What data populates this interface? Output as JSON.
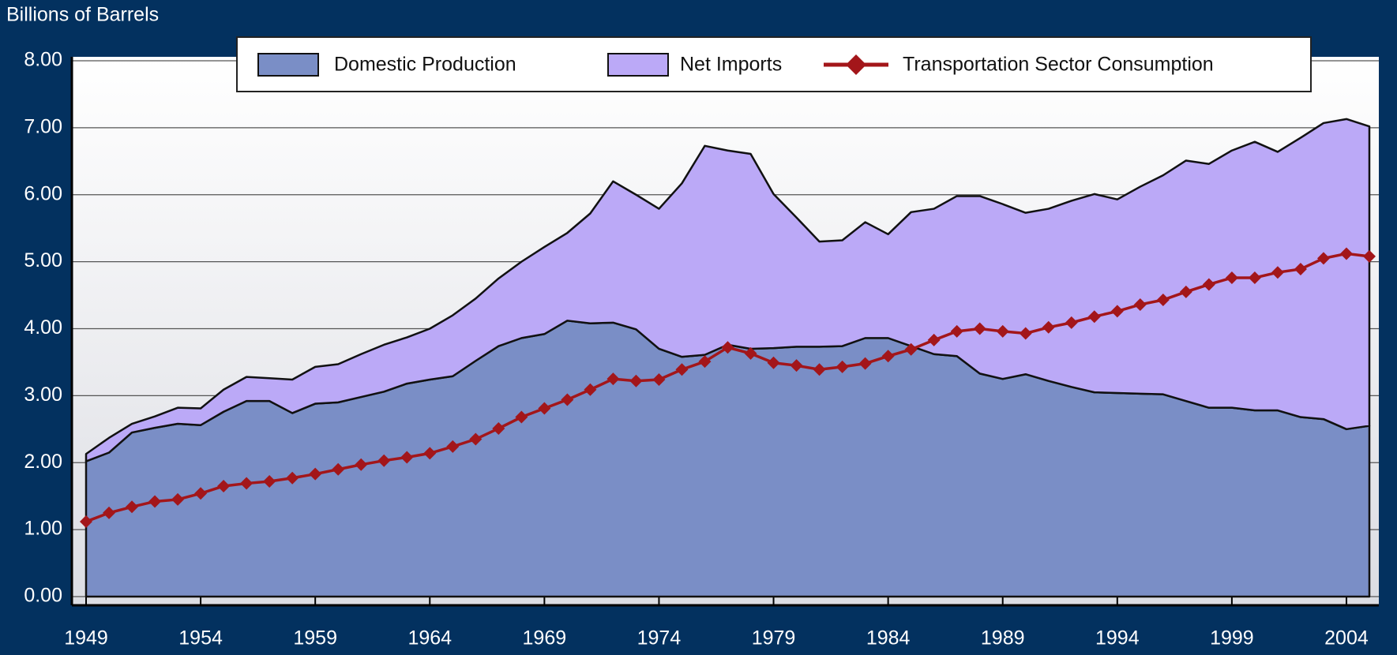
{
  "chart_data": {
    "type": "area",
    "y_label": "Billions of Barrels",
    "x": [
      1949,
      1950,
      1951,
      1952,
      1953,
      1954,
      1955,
      1956,
      1957,
      1958,
      1959,
      1960,
      1961,
      1962,
      1963,
      1964,
      1965,
      1966,
      1967,
      1968,
      1969,
      1970,
      1971,
      1972,
      1973,
      1974,
      1975,
      1976,
      1977,
      1978,
      1979,
      1980,
      1981,
      1982,
      1983,
      1984,
      1985,
      1986,
      1987,
      1988,
      1989,
      1990,
      1991,
      1992,
      1993,
      1994,
      1995,
      1996,
      1997,
      1998,
      1999,
      2000,
      2001,
      2002,
      2003,
      2004,
      2005
    ],
    "series": [
      {
        "name": "Domestic Production",
        "type": "area",
        "stacked": true,
        "color": "#7a8ec6",
        "values": [
          2.02,
          2.15,
          2.45,
          2.52,
          2.58,
          2.56,
          2.76,
          2.92,
          2.92,
          2.74,
          2.88,
          2.9,
          2.98,
          3.06,
          3.18,
          3.24,
          3.29,
          3.52,
          3.74,
          3.86,
          3.92,
          4.12,
          4.08,
          4.09,
          3.99,
          3.7,
          3.58,
          3.61,
          3.76,
          3.7,
          3.71,
          3.73,
          3.73,
          3.74,
          3.86,
          3.86,
          3.74,
          3.62,
          3.59,
          3.33,
          3.25,
          3.32,
          3.22,
          3.13,
          3.05,
          3.04,
          3.03,
          3.02,
          2.92,
          2.82,
          2.82,
          2.78,
          2.78,
          2.68,
          2.65,
          2.5,
          2.55
        ]
      },
      {
        "name": "Net Imports",
        "type": "area",
        "stacked": true,
        "color": "#bba9f7",
        "values": [
          0.11,
          0.22,
          0.13,
          0.17,
          0.24,
          0.25,
          0.33,
          0.36,
          0.34,
          0.5,
          0.55,
          0.57,
          0.64,
          0.7,
          0.69,
          0.76,
          0.91,
          0.93,
          1.01,
          1.14,
          1.3,
          1.31,
          1.64,
          2.11,
          2.01,
          2.09,
          2.59,
          3.12,
          2.9,
          2.91,
          2.3,
          1.93,
          1.57,
          1.58,
          1.73,
          1.55,
          2.0,
          2.17,
          2.39,
          2.65,
          2.61,
          2.41,
          2.57,
          2.78,
          2.96,
          2.89,
          3.09,
          3.27,
          3.59,
          3.64,
          3.84,
          4.01,
          3.86,
          4.17,
          4.42,
          4.63,
          4.47
        ]
      },
      {
        "name": "Transportation Sector Consumption",
        "type": "line",
        "color": "#a3161a",
        "values": [
          1.12,
          1.25,
          1.34,
          1.42,
          1.45,
          1.54,
          1.65,
          1.69,
          1.72,
          1.77,
          1.83,
          1.9,
          1.97,
          2.03,
          2.08,
          2.14,
          2.24,
          2.35,
          2.51,
          2.68,
          2.81,
          2.94,
          3.09,
          3.25,
          3.22,
          3.24,
          3.39,
          3.51,
          3.72,
          3.63,
          3.49,
          3.45,
          3.39,
          3.43,
          3.48,
          3.59,
          3.69,
          3.83,
          3.96,
          4.0,
          3.96,
          3.93,
          4.02,
          4.09,
          4.18,
          4.26,
          4.36,
          4.43,
          4.55,
          4.66,
          4.76,
          4.76,
          4.84,
          4.89,
          5.05,
          5.12,
          5.08
        ]
      }
    ],
    "xlim": [
      1949,
      2005
    ],
    "xticks": [
      1949,
      1954,
      1959,
      1964,
      1969,
      1974,
      1979,
      1984,
      1989,
      1994,
      1999,
      2004
    ],
    "ylim": [
      0,
      8
    ],
    "yticks": [
      {
        "value": 0,
        "label": "0.00"
      },
      {
        "value": 1,
        "label": "1.00"
      },
      {
        "value": 2,
        "label": "2.00"
      },
      {
        "value": 3,
        "label": "3.00"
      },
      {
        "value": 4,
        "label": "4.00"
      },
      {
        "value": 5,
        "label": "5.00"
      },
      {
        "value": 6,
        "label": "6.00"
      },
      {
        "value": 7,
        "label": "7.00"
      },
      {
        "value": 8,
        "label": "8.00"
      }
    ],
    "grid": true,
    "legend": "top"
  }
}
